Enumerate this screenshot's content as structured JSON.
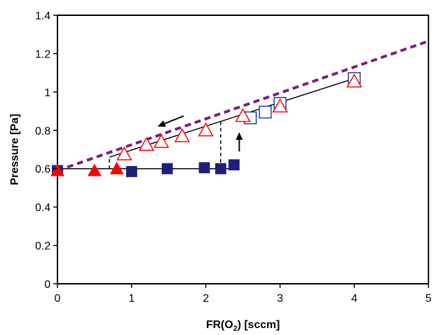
{
  "chart_data": {
    "type": "scatter",
    "xlabel": "FR(O",
    "xlabel_sub": "2",
    "xlabel_suffix": ") [sccm]",
    "ylabel": "Pressure [Pa]",
    "xlim": [
      0,
      5
    ],
    "ylim": [
      0,
      1.4
    ],
    "x_ticks": [
      "0",
      "1",
      "2",
      "3",
      "4",
      "5"
    ],
    "y_ticks": [
      "0",
      "0.2",
      "0.4",
      "0.6",
      "0.8",
      "1",
      "1.2",
      "1.4"
    ],
    "grid": false,
    "legend": "none",
    "series": [
      {
        "marker": "filled-square",
        "color": "#1f1f7a",
        "points": [
          [
            0,
            0.59
          ],
          [
            1.0,
            0.585
          ],
          [
            1.48,
            0.6
          ],
          [
            1.98,
            0.605
          ],
          [
            2.2,
            0.6
          ],
          [
            2.38,
            0.62
          ]
        ]
      },
      {
        "marker": "open-square",
        "color": "#1f3fa0",
        "points": [
          [
            2.6,
            0.865
          ],
          [
            2.8,
            0.895
          ],
          [
            3.0,
            0.94
          ],
          [
            4.0,
            1.07
          ]
        ]
      },
      {
        "marker": "filled-triangle",
        "color": "#ff0000",
        "points": [
          [
            0,
            0.59
          ],
          [
            0.5,
            0.59
          ],
          [
            0.8,
            0.6
          ]
        ]
      },
      {
        "marker": "open-triangle",
        "color": "#ff0000",
        "points": [
          [
            0.9,
            0.675
          ],
          [
            1.2,
            0.725
          ],
          [
            1.4,
            0.74
          ],
          [
            1.68,
            0.77
          ],
          [
            2.0,
            0.8
          ],
          [
            2.5,
            0.875
          ],
          [
            3.0,
            0.925
          ],
          [
            4.0,
            1.055
          ]
        ]
      }
    ],
    "lines": [
      {
        "style": "solid",
        "color": "#000000",
        "points": [
          [
            0,
            0.6
          ],
          [
            2.38,
            0.6
          ]
        ]
      },
      {
        "style": "solid",
        "color": "#000000",
        "points": [
          [
            0.7,
            0.66
          ],
          [
            4.0,
            1.07
          ]
        ]
      },
      {
        "style": "dashed-thick",
        "color": "#7a1f7a",
        "points": [
          [
            0,
            0.59
          ],
          [
            5.0,
            1.265
          ]
        ]
      },
      {
        "style": "dashed",
        "color": "#000000",
        "points": [
          [
            0.7,
            0.6
          ],
          [
            0.7,
            0.66
          ]
        ]
      },
      {
        "style": "dashed",
        "color": "#000000",
        "points": [
          [
            2.2,
            0.6
          ],
          [
            2.2,
            0.86
          ]
        ]
      }
    ],
    "annotations": [
      {
        "type": "arrow",
        "color": "#000000",
        "from": [
          1.7,
          0.875
        ],
        "to": [
          1.35,
          0.82
        ]
      },
      {
        "type": "arrow",
        "color": "#000000",
        "from": [
          2.45,
          0.69
        ],
        "to": [
          2.45,
          0.79
        ]
      }
    ]
  }
}
